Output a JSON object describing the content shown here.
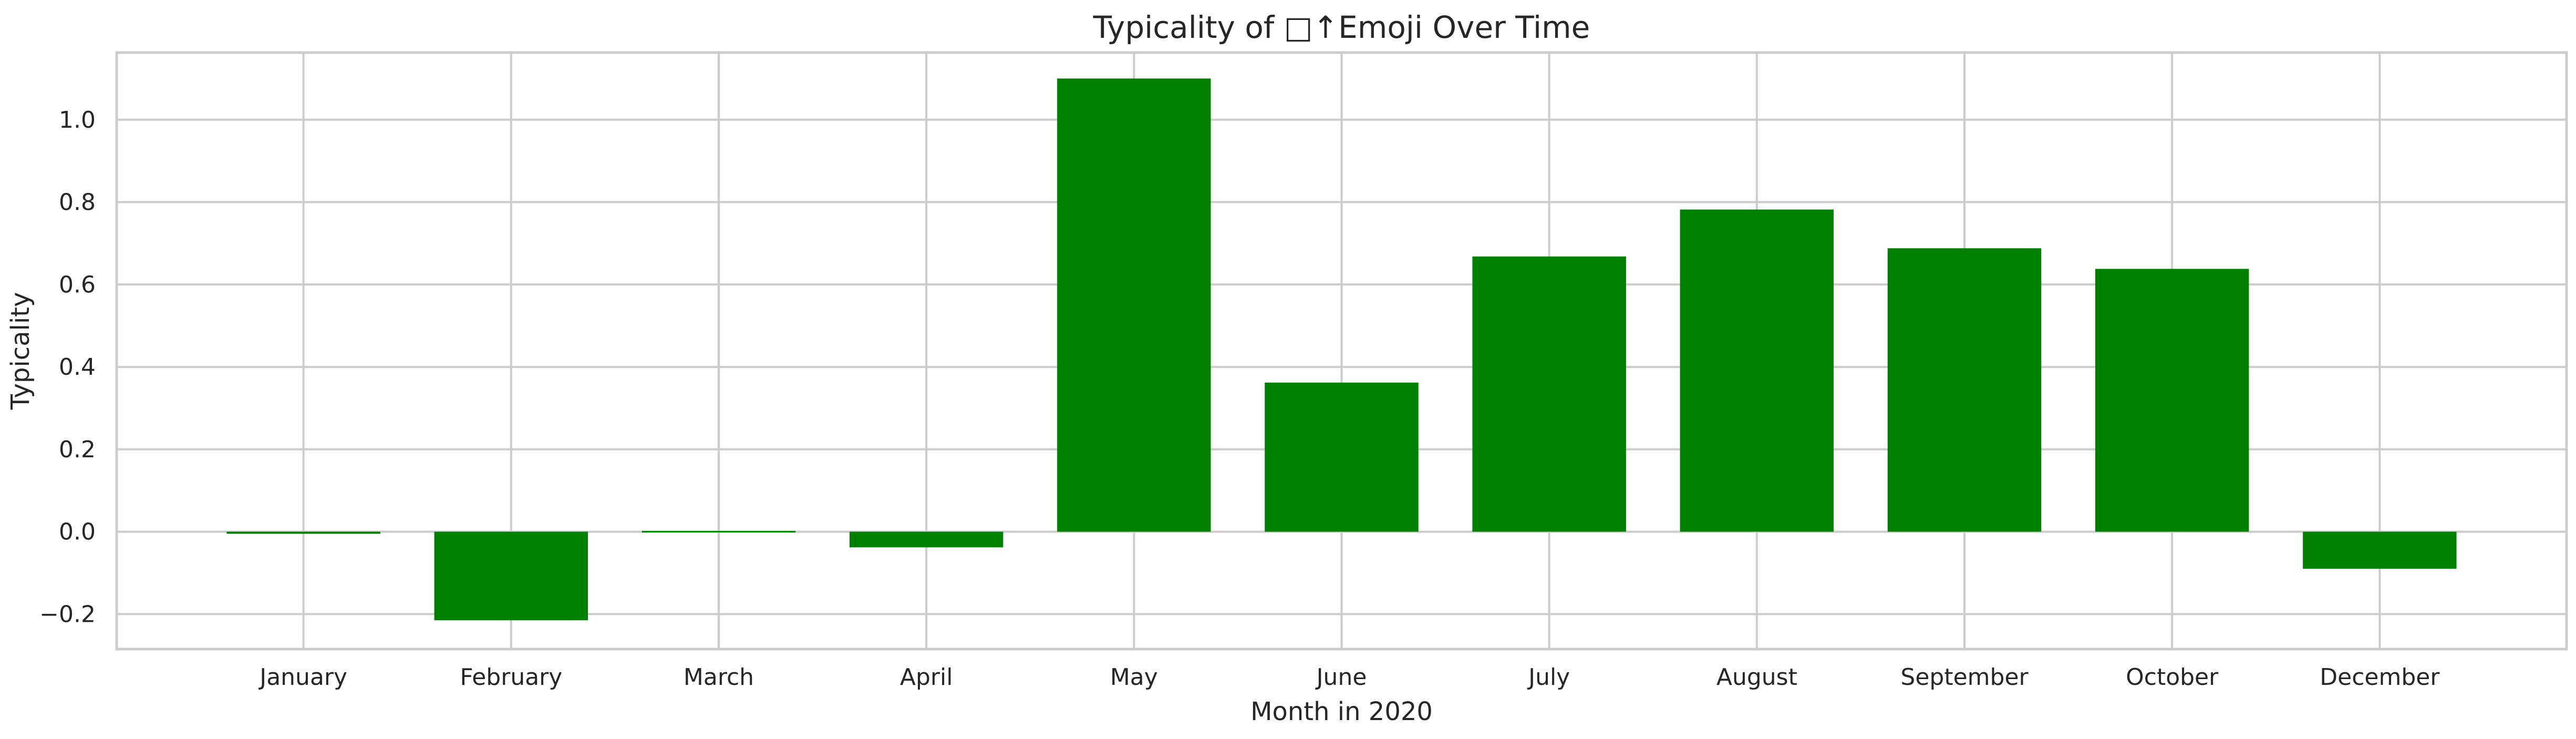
{
  "chart_data": {
    "type": "bar",
    "title": "Typicality of □↑Emoji Over Time",
    "xlabel": "Month in 2020",
    "ylabel": "Typicality",
    "categories": [
      "January",
      "February",
      "March",
      "April",
      "May",
      "June",
      "July",
      "August",
      "September",
      "October",
      "December"
    ],
    "values": [
      -0.005,
      -0.215,
      0.0,
      -0.038,
      1.1,
      0.362,
      0.668,
      0.782,
      0.688,
      0.638,
      -0.09
    ],
    "ylim": [
      -0.285,
      1.163
    ],
    "yticks": [
      -0.2,
      0.0,
      0.2,
      0.4,
      0.6,
      0.8,
      1.0
    ],
    "ytick_labels": [
      "−0.2",
      "0.0",
      "0.2",
      "0.4",
      "0.6",
      "0.8",
      "1.0"
    ],
    "grid": true,
    "legend": "none",
    "colors": {
      "bar": "#008000",
      "grid": "#cccccc",
      "axes_edge": "#cccccc",
      "text": "#262626",
      "background": "#ffffff"
    }
  }
}
